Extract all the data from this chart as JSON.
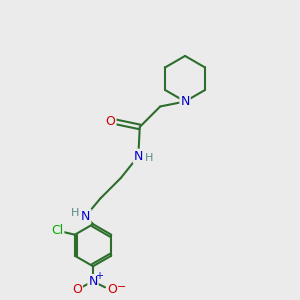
{
  "background_color": "#ebebeb",
  "bond_color": "#2d6e2d",
  "bond_width": 1.5,
  "atom_colors": {
    "N": "#0000cc",
    "O": "#cc0000",
    "Cl": "#00aa00",
    "C": "#2d6e2d",
    "H": "#5a8a8a"
  },
  "font_size": 9,
  "fig_size": [
    3.0,
    3.0
  ],
  "dpi": 100,
  "xlim": [
    0,
    10
  ],
  "ylim": [
    0,
    10
  ]
}
